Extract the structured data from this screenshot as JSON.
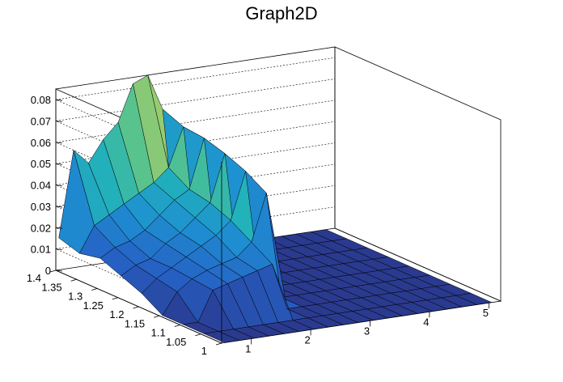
{
  "chart_data": {
    "type": "surface",
    "title": "Graph2D",
    "xlabel": "",
    "ylabel": "",
    "zlabel": "",
    "x_ticks": [
      "1",
      "2",
      "3",
      "4",
      "5"
    ],
    "y_ticks": [
      "1",
      "1.05",
      "1.1",
      "1.15",
      "1.2",
      "1.25",
      "1.3",
      "1.35",
      "1.4"
    ],
    "z_ticks": [
      "0",
      "0.01",
      "0.02",
      "0.03",
      "0.04",
      "0.05",
      "0.06",
      "0.07",
      "0.08"
    ],
    "xlim": [
      0.5,
      5.2
    ],
    "ylim": [
      1.0,
      1.4
    ],
    "zlim": [
      0,
      0.085
    ],
    "colormap": [
      "#2a3a8f",
      "#2660c4",
      "#1e8fd1",
      "#22b3b9",
      "#5dc48a",
      "#b8cf62",
      "#f3d23b"
    ],
    "grid": true,
    "x_grid": [
      0.55,
      0.8,
      1.05,
      1.3,
      1.55,
      1.8,
      2.05,
      2.3,
      2.55,
      2.8,
      3.05,
      3.3,
      3.55,
      3.8,
      4.05,
      4.3,
      4.55,
      4.8,
      5.05
    ],
    "y_grid": [
      1.0,
      1.05,
      1.1,
      1.15,
      1.2,
      1.25,
      1.3,
      1.35,
      1.4
    ],
    "z": [
      [
        0.0,
        0.0,
        0.0,
        0.0,
        0.0,
        0.0,
        0.0,
        0.0,
        0.0,
        0.0,
        0.0,
        0.0,
        0.0,
        0.0,
        0.0,
        0.0,
        0.0,
        0.0,
        0.0
      ],
      [
        0.0,
        0.0,
        0.0,
        0.0,
        0.0,
        0.0,
        0.0,
        0.0,
        0.0,
        0.0,
        0.0,
        0.0,
        0.0,
        0.0,
        0.0,
        0.0,
        0.0,
        0.0,
        0.0
      ],
      [
        0.0,
        0.0,
        0.014,
        0.016,
        0.018,
        0.02,
        0.022,
        0.0,
        0.0,
        0.0,
        0.0,
        0.0,
        0.0,
        0.0,
        0.0,
        0.0,
        0.0,
        0.0,
        0.0
      ],
      [
        0.0,
        0.01,
        0.015,
        0.018,
        0.02,
        0.022,
        0.028,
        0.05,
        0.0,
        0.0,
        0.0,
        0.0,
        0.0,
        0.0,
        0.0,
        0.0,
        0.0,
        0.0,
        0.0
      ],
      [
        0.006,
        0.012,
        0.016,
        0.02,
        0.024,
        0.028,
        0.034,
        0.056,
        0.0,
        0.0,
        0.0,
        0.0,
        0.0,
        0.0,
        0.0,
        0.0,
        0.0,
        0.0,
        0.0
      ],
      [
        0.01,
        0.014,
        0.016,
        0.022,
        0.026,
        0.032,
        0.038,
        0.06,
        0.0,
        0.0,
        0.0,
        0.0,
        0.0,
        0.0,
        0.0,
        0.0,
        0.0,
        0.0,
        0.0
      ],
      [
        0.014,
        0.018,
        0.02,
        0.024,
        0.03,
        0.036,
        0.04,
        0.063,
        0.0,
        0.0,
        0.0,
        0.0,
        0.0,
        0.0,
        0.0,
        0.0,
        0.0,
        0.0,
        0.0
      ],
      [
        0.012,
        0.024,
        0.028,
        0.032,
        0.036,
        0.04,
        0.046,
        0.064,
        0.0,
        0.0,
        0.0,
        0.0,
        0.0,
        0.0,
        0.0,
        0.0,
        0.0,
        0.0,
        0.0
      ],
      [
        0.015,
        0.055,
        0.048,
        0.058,
        0.065,
        0.082,
        0.085,
        0.068,
        0.0,
        0.0,
        0.0,
        0.0,
        0.0,
        0.0,
        0.0,
        0.0,
        0.0,
        0.0,
        0.0
      ]
    ]
  }
}
